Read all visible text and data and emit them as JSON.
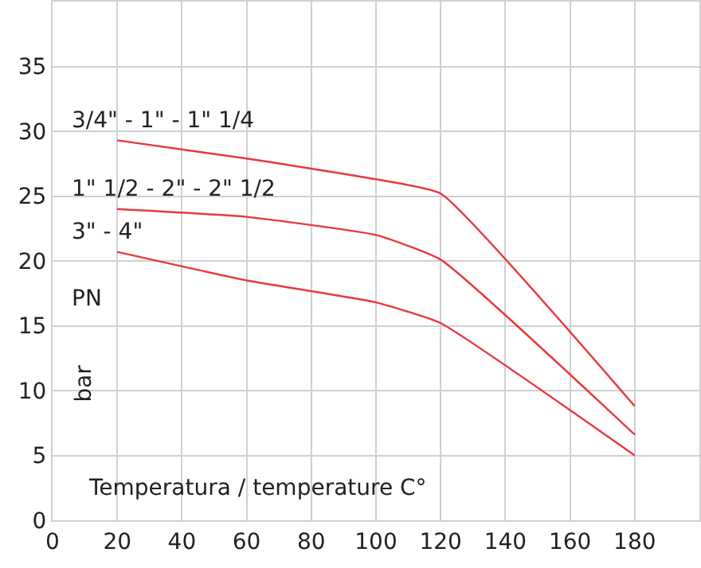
{
  "chart_data": {
    "type": "line",
    "xlabel": "Temperatura / temperature C°",
    "ylabel": "bar",
    "annotations": [
      "PN"
    ],
    "series": [
      {
        "name": "3/4\" - 1\" - 1\" 1/4",
        "color": "#e8383d",
        "x": [
          20,
          60,
          100,
          120,
          180
        ],
        "values": [
          29.3,
          27.9,
          26.3,
          25.2,
          8.8
        ]
      },
      {
        "name": "1\" 1/2 - 2\" - 2\" 1/2",
        "color": "#e8383d",
        "x": [
          20,
          60,
          100,
          120,
          180
        ],
        "values": [
          24,
          23.4,
          22,
          20.1,
          6.6
        ]
      },
      {
        "name": "3\" - 4\"",
        "color": "#e8383d",
        "x": [
          20,
          60,
          100,
          120,
          180
        ],
        "values": [
          20.7,
          18.5,
          16.8,
          15.2,
          5
        ]
      }
    ],
    "xlim": [
      0,
      200
    ],
    "ylim": [
      0,
      40
    ],
    "xticks": [
      0,
      20,
      40,
      60,
      80,
      100,
      120,
      140,
      160,
      180
    ],
    "yticks": [
      0,
      5,
      10,
      15,
      20,
      25,
      30,
      35
    ],
    "grid": true,
    "legend": false,
    "line_style": "solid"
  }
}
